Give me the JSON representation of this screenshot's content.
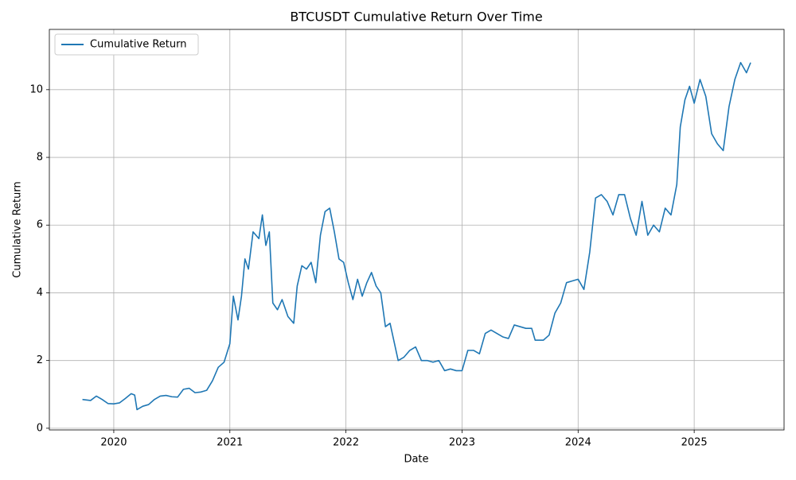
{
  "chart_data": {
    "type": "line",
    "title": "BTCUSDT Cumulative Return Over Time",
    "x_label": "Date",
    "y_label": "Cumulative Return",
    "x": [
      2019.73,
      2019.8,
      2019.85,
      2019.9,
      2019.95,
      2020.0,
      2020.05,
      2020.1,
      2020.15,
      2020.18,
      2020.2,
      2020.25,
      2020.3,
      2020.35,
      2020.4,
      2020.45,
      2020.5,
      2020.55,
      2020.6,
      2020.65,
      2020.7,
      2020.75,
      2020.8,
      2020.85,
      2020.9,
      2020.95,
      2021.0,
      2021.03,
      2021.07,
      2021.1,
      2021.13,
      2021.16,
      2021.2,
      2021.25,
      2021.28,
      2021.31,
      2021.34,
      2021.37,
      2021.41,
      2021.45,
      2021.5,
      2021.55,
      2021.58,
      2021.62,
      2021.66,
      2021.7,
      2021.74,
      2021.78,
      2021.82,
      2021.86,
      2021.9,
      2021.94,
      2021.98,
      2022.02,
      2022.06,
      2022.1,
      2022.14,
      2022.18,
      2022.22,
      2022.26,
      2022.3,
      2022.34,
      2022.38,
      2022.45,
      2022.5,
      2022.55,
      2022.6,
      2022.65,
      2022.7,
      2022.75,
      2022.8,
      2022.85,
      2022.9,
      2022.95,
      2023.0,
      2023.05,
      2023.1,
      2023.15,
      2023.2,
      2023.25,
      2023.3,
      2023.35,
      2023.4,
      2023.45,
      2023.5,
      2023.55,
      2023.6,
      2023.63,
      2023.7,
      2023.75,
      2023.8,
      2023.85,
      2023.9,
      2023.95,
      2024.0,
      2024.05,
      2024.1,
      2024.15,
      2024.2,
      2024.25,
      2024.3,
      2024.35,
      2024.4,
      2024.45,
      2024.5,
      2024.55,
      2024.6,
      2024.65,
      2024.7,
      2024.75,
      2024.8,
      2024.85,
      2024.88,
      2024.92,
      2024.96,
      2025.0,
      2025.05,
      2025.1,
      2025.15,
      2025.2,
      2025.25,
      2025.3,
      2025.35,
      2025.4,
      2025.45,
      2025.486
    ],
    "series": [
      {
        "name": "Cumulative Return",
        "color": "#1f77b4",
        "values": [
          0.85,
          0.82,
          0.95,
          0.85,
          0.73,
          0.72,
          0.75,
          0.88,
          1.02,
          0.98,
          0.55,
          0.65,
          0.7,
          0.85,
          0.95,
          0.97,
          0.93,
          0.92,
          1.15,
          1.18,
          1.05,
          1.07,
          1.12,
          1.4,
          1.8,
          1.95,
          2.5,
          3.9,
          3.2,
          3.9,
          5.0,
          4.7,
          5.8,
          5.6,
          6.3,
          5.4,
          5.8,
          3.7,
          3.5,
          3.8,
          3.3,
          3.1,
          4.2,
          4.8,
          4.7,
          4.9,
          4.3,
          5.7,
          6.4,
          6.5,
          5.8,
          5.0,
          4.9,
          4.3,
          3.8,
          4.4,
          3.9,
          4.3,
          4.6,
          4.2,
          4.0,
          3.0,
          3.1,
          2.0,
          2.1,
          2.3,
          2.4,
          2.0,
          2.0,
          1.95,
          2.0,
          1.7,
          1.75,
          1.7,
          1.7,
          2.3,
          2.3,
          2.2,
          2.8,
          2.9,
          2.8,
          2.7,
          2.65,
          3.05,
          3.0,
          2.95,
          2.95,
          2.6,
          2.6,
          2.75,
          3.4,
          3.7,
          4.3,
          4.35,
          4.4,
          4.1,
          5.2,
          6.8,
          6.9,
          6.7,
          6.3,
          6.9,
          6.9,
          6.2,
          5.7,
          6.7,
          5.7,
          6.0,
          5.8,
          6.5,
          6.3,
          7.2,
          8.9,
          9.7,
          10.1,
          9.6,
          10.3,
          9.8,
          8.7,
          8.4,
          8.2,
          9.5,
          10.3,
          10.8,
          10.5,
          10.8
        ]
      }
    ],
    "xlim": [
      2019.445,
      2025.774
    ],
    "xticks": [
      2020,
      2021,
      2022,
      2023,
      2024,
      2025
    ],
    "ylim": [
      -0.05,
      11.78
    ],
    "yticks": [
      0,
      2,
      4,
      6,
      8,
      10
    ],
    "grid": true,
    "legend": "upper left"
  }
}
